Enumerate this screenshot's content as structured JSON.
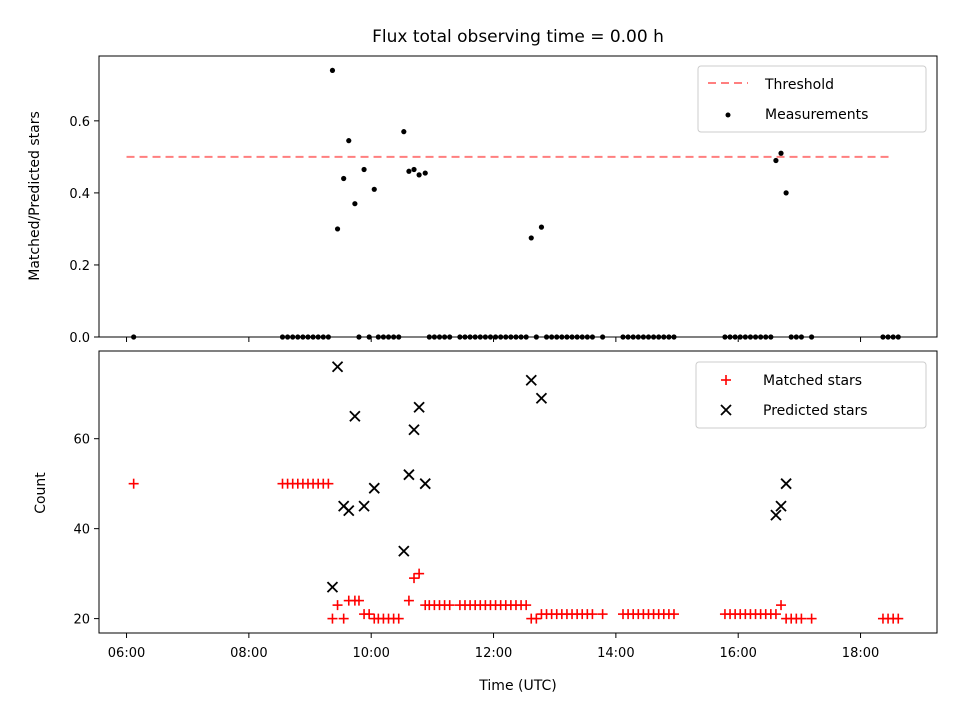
{
  "chart_data": [
    {
      "type": "scatter",
      "title": "Flux total observing time = 0.00 h",
      "xlabel": "",
      "ylabel": "Matched/Predicted stars",
      "xlim_hours": [
        5.55,
        19.25
      ],
      "ylim": [
        0,
        0.78
      ],
      "yticks": [
        0.0,
        0.2,
        0.4,
        0.6
      ],
      "ytick_labels": [
        "0.0",
        "0.2",
        "0.4",
        "0.6"
      ],
      "legend_position": "top-right",
      "colors": {
        "threshold": "#ff7f7f",
        "measurements": "#000000"
      },
      "threshold": {
        "name": "Threshold",
        "value": 0.5,
        "x_range": [
          "06:00",
          "18:30"
        ]
      },
      "series": [
        {
          "name": "Measurements",
          "points": [
            [
              "06:07",
              0.0
            ],
            [
              "08:33",
              0.0
            ],
            [
              "08:38",
              0.0
            ],
            [
              "08:43",
              0.0
            ],
            [
              "08:48",
              0.0
            ],
            [
              "08:53",
              0.0
            ],
            [
              "08:58",
              0.0
            ],
            [
              "09:03",
              0.0
            ],
            [
              "09:08",
              0.0
            ],
            [
              "09:13",
              0.0
            ],
            [
              "09:18",
              0.0
            ],
            [
              "09:22",
              0.74
            ],
            [
              "09:27",
              0.3
            ],
            [
              "09:33",
              0.44
            ],
            [
              "09:38",
              0.545
            ],
            [
              "09:44",
              0.37
            ],
            [
              "09:48",
              0.0
            ],
            [
              "09:53",
              0.465
            ],
            [
              "09:58",
              0.0
            ],
            [
              "10:03",
              0.41
            ],
            [
              "10:07",
              0.0
            ],
            [
              "10:12",
              0.0
            ],
            [
              "10:17",
              0.0
            ],
            [
              "10:22",
              0.0
            ],
            [
              "10:27",
              0.0
            ],
            [
              "10:32",
              0.57
            ],
            [
              "10:37",
              0.46
            ],
            [
              "10:42",
              0.465
            ],
            [
              "10:47",
              0.45
            ],
            [
              "10:53",
              0.455
            ],
            [
              "10:57",
              0.0
            ],
            [
              "11:02",
              0.0
            ],
            [
              "11:07",
              0.0
            ],
            [
              "11:12",
              0.0
            ],
            [
              "11:17",
              0.0
            ],
            [
              "11:27",
              0.0
            ],
            [
              "11:32",
              0.0
            ],
            [
              "11:37",
              0.0
            ],
            [
              "11:42",
              0.0
            ],
            [
              "11:47",
              0.0
            ],
            [
              "11:52",
              0.0
            ],
            [
              "11:57",
              0.0
            ],
            [
              "12:02",
              0.0
            ],
            [
              "12:07",
              0.0
            ],
            [
              "12:12",
              0.0
            ],
            [
              "12:17",
              0.0
            ],
            [
              "12:22",
              0.0
            ],
            [
              "12:27",
              0.0
            ],
            [
              "12:32",
              0.0
            ],
            [
              "12:37",
              0.275
            ],
            [
              "12:42",
              0.0
            ],
            [
              "12:47",
              0.305
            ],
            [
              "12:52",
              0.0
            ],
            [
              "12:57",
              0.0
            ],
            [
              "13:02",
              0.0
            ],
            [
              "13:07",
              0.0
            ],
            [
              "13:12",
              0.0
            ],
            [
              "13:17",
              0.0
            ],
            [
              "13:22",
              0.0
            ],
            [
              "13:27",
              0.0
            ],
            [
              "13:32",
              0.0
            ],
            [
              "13:37",
              0.0
            ],
            [
              "13:47",
              0.0
            ],
            [
              "14:07",
              0.0
            ],
            [
              "14:12",
              0.0
            ],
            [
              "14:17",
              0.0
            ],
            [
              "14:22",
              0.0
            ],
            [
              "14:27",
              0.0
            ],
            [
              "14:32",
              0.0
            ],
            [
              "14:37",
              0.0
            ],
            [
              "14:42",
              0.0
            ],
            [
              "14:47",
              0.0
            ],
            [
              "14:52",
              0.0
            ],
            [
              "14:57",
              0.0
            ],
            [
              "15:47",
              0.0
            ],
            [
              "15:52",
              0.0
            ],
            [
              "15:57",
              0.0
            ],
            [
              "16:02",
              0.0
            ],
            [
              "16:07",
              0.0
            ],
            [
              "16:12",
              0.0
            ],
            [
              "16:17",
              0.0
            ],
            [
              "16:22",
              0.0
            ],
            [
              "16:27",
              0.0
            ],
            [
              "16:32",
              0.0
            ],
            [
              "16:37",
              0.49
            ],
            [
              "16:42",
              0.51
            ],
            [
              "16:47",
              0.4
            ],
            [
              "16:52",
              0.0
            ],
            [
              "16:57",
              0.0
            ],
            [
              "17:02",
              0.0
            ],
            [
              "17:12",
              0.0
            ],
            [
              "18:22",
              0.0
            ],
            [
              "18:27",
              0.0
            ],
            [
              "18:32",
              0.0
            ],
            [
              "18:37",
              0.0
            ]
          ]
        }
      ]
    },
    {
      "type": "scatter",
      "title": "",
      "xlabel": "Time (UTC)",
      "ylabel": "Count",
      "xlim_hours": [
        5.55,
        19.25
      ],
      "ylim": [
        16.8,
        79.5
      ],
      "yticks": [
        20,
        40,
        60
      ],
      "ytick_labels": [
        "20",
        "40",
        "60"
      ],
      "xticks": [
        "06:00",
        "08:00",
        "10:00",
        "12:00",
        "14:00",
        "16:00",
        "18:00"
      ],
      "legend_position": "top-right",
      "colors": {
        "matched": "#ff0000",
        "predicted": "#000000"
      },
      "series": [
        {
          "name": "Matched stars",
          "marker": "+",
          "points": [
            [
              "06:07",
              50
            ],
            [
              "08:33",
              50
            ],
            [
              "08:38",
              50
            ],
            [
              "08:43",
              50
            ],
            [
              "08:48",
              50
            ],
            [
              "08:53",
              50
            ],
            [
              "08:58",
              50
            ],
            [
              "09:03",
              50
            ],
            [
              "09:08",
              50
            ],
            [
              "09:13",
              50
            ],
            [
              "09:18",
              50
            ],
            [
              "09:22",
              20
            ],
            [
              "09:27",
              23
            ],
            [
              "09:33",
              20
            ],
            [
              "09:38",
              24
            ],
            [
              "09:44",
              24
            ],
            [
              "09:48",
              24
            ],
            [
              "09:53",
              21
            ],
            [
              "09:58",
              21
            ],
            [
              "10:03",
              20
            ],
            [
              "10:07",
              20
            ],
            [
              "10:12",
              20
            ],
            [
              "10:17",
              20
            ],
            [
              "10:22",
              20
            ],
            [
              "10:27",
              20
            ],
            [
              "10:37",
              24
            ],
            [
              "10:42",
              29
            ],
            [
              "10:47",
              30
            ],
            [
              "10:53",
              23
            ],
            [
              "10:57",
              23
            ],
            [
              "11:02",
              23
            ],
            [
              "11:07",
              23
            ],
            [
              "11:12",
              23
            ],
            [
              "11:17",
              23
            ],
            [
              "11:27",
              23
            ],
            [
              "11:32",
              23
            ],
            [
              "11:37",
              23
            ],
            [
              "11:42",
              23
            ],
            [
              "11:47",
              23
            ],
            [
              "11:52",
              23
            ],
            [
              "11:57",
              23
            ],
            [
              "12:02",
              23
            ],
            [
              "12:07",
              23
            ],
            [
              "12:12",
              23
            ],
            [
              "12:17",
              23
            ],
            [
              "12:22",
              23
            ],
            [
              "12:27",
              23
            ],
            [
              "12:32",
              23
            ],
            [
              "12:37",
              20
            ],
            [
              "12:42",
              20
            ],
            [
              "12:47",
              21
            ],
            [
              "12:52",
              21
            ],
            [
              "12:57",
              21
            ],
            [
              "13:02",
              21
            ],
            [
              "13:07",
              21
            ],
            [
              "13:12",
              21
            ],
            [
              "13:17",
              21
            ],
            [
              "13:22",
              21
            ],
            [
              "13:27",
              21
            ],
            [
              "13:32",
              21
            ],
            [
              "13:37",
              21
            ],
            [
              "13:47",
              21
            ],
            [
              "14:07",
              21
            ],
            [
              "14:12",
              21
            ],
            [
              "14:17",
              21
            ],
            [
              "14:22",
              21
            ],
            [
              "14:27",
              21
            ],
            [
              "14:32",
              21
            ],
            [
              "14:37",
              21
            ],
            [
              "14:42",
              21
            ],
            [
              "14:47",
              21
            ],
            [
              "14:52",
              21
            ],
            [
              "14:57",
              21
            ],
            [
              "15:47",
              21
            ],
            [
              "15:52",
              21
            ],
            [
              "15:57",
              21
            ],
            [
              "16:02",
              21
            ],
            [
              "16:07",
              21
            ],
            [
              "16:12",
              21
            ],
            [
              "16:17",
              21
            ],
            [
              "16:22",
              21
            ],
            [
              "16:27",
              21
            ],
            [
              "16:32",
              21
            ],
            [
              "16:37",
              21
            ],
            [
              "16:42",
              23
            ],
            [
              "16:47",
              20
            ],
            [
              "16:52",
              20
            ],
            [
              "16:57",
              20
            ],
            [
              "17:02",
              20
            ],
            [
              "17:12",
              20
            ],
            [
              "18:22",
              20
            ],
            [
              "18:27",
              20
            ],
            [
              "18:32",
              20
            ],
            [
              "18:37",
              20
            ]
          ]
        },
        {
          "name": "Predicted stars",
          "marker": "x",
          "points": [
            [
              "09:22",
              27
            ],
            [
              "09:27",
              76
            ],
            [
              "09:33",
              45
            ],
            [
              "09:38",
              44
            ],
            [
              "09:44",
              65
            ],
            [
              "09:53",
              45
            ],
            [
              "10:03",
              49
            ],
            [
              "10:32",
              35
            ],
            [
              "10:37",
              52
            ],
            [
              "10:42",
              62
            ],
            [
              "10:47",
              67
            ],
            [
              "10:53",
              50
            ],
            [
              "12:37",
              73
            ],
            [
              "12:47",
              69
            ],
            [
              "16:37",
              43
            ],
            [
              "16:42",
              45
            ],
            [
              "16:47",
              50
            ]
          ]
        }
      ]
    }
  ]
}
